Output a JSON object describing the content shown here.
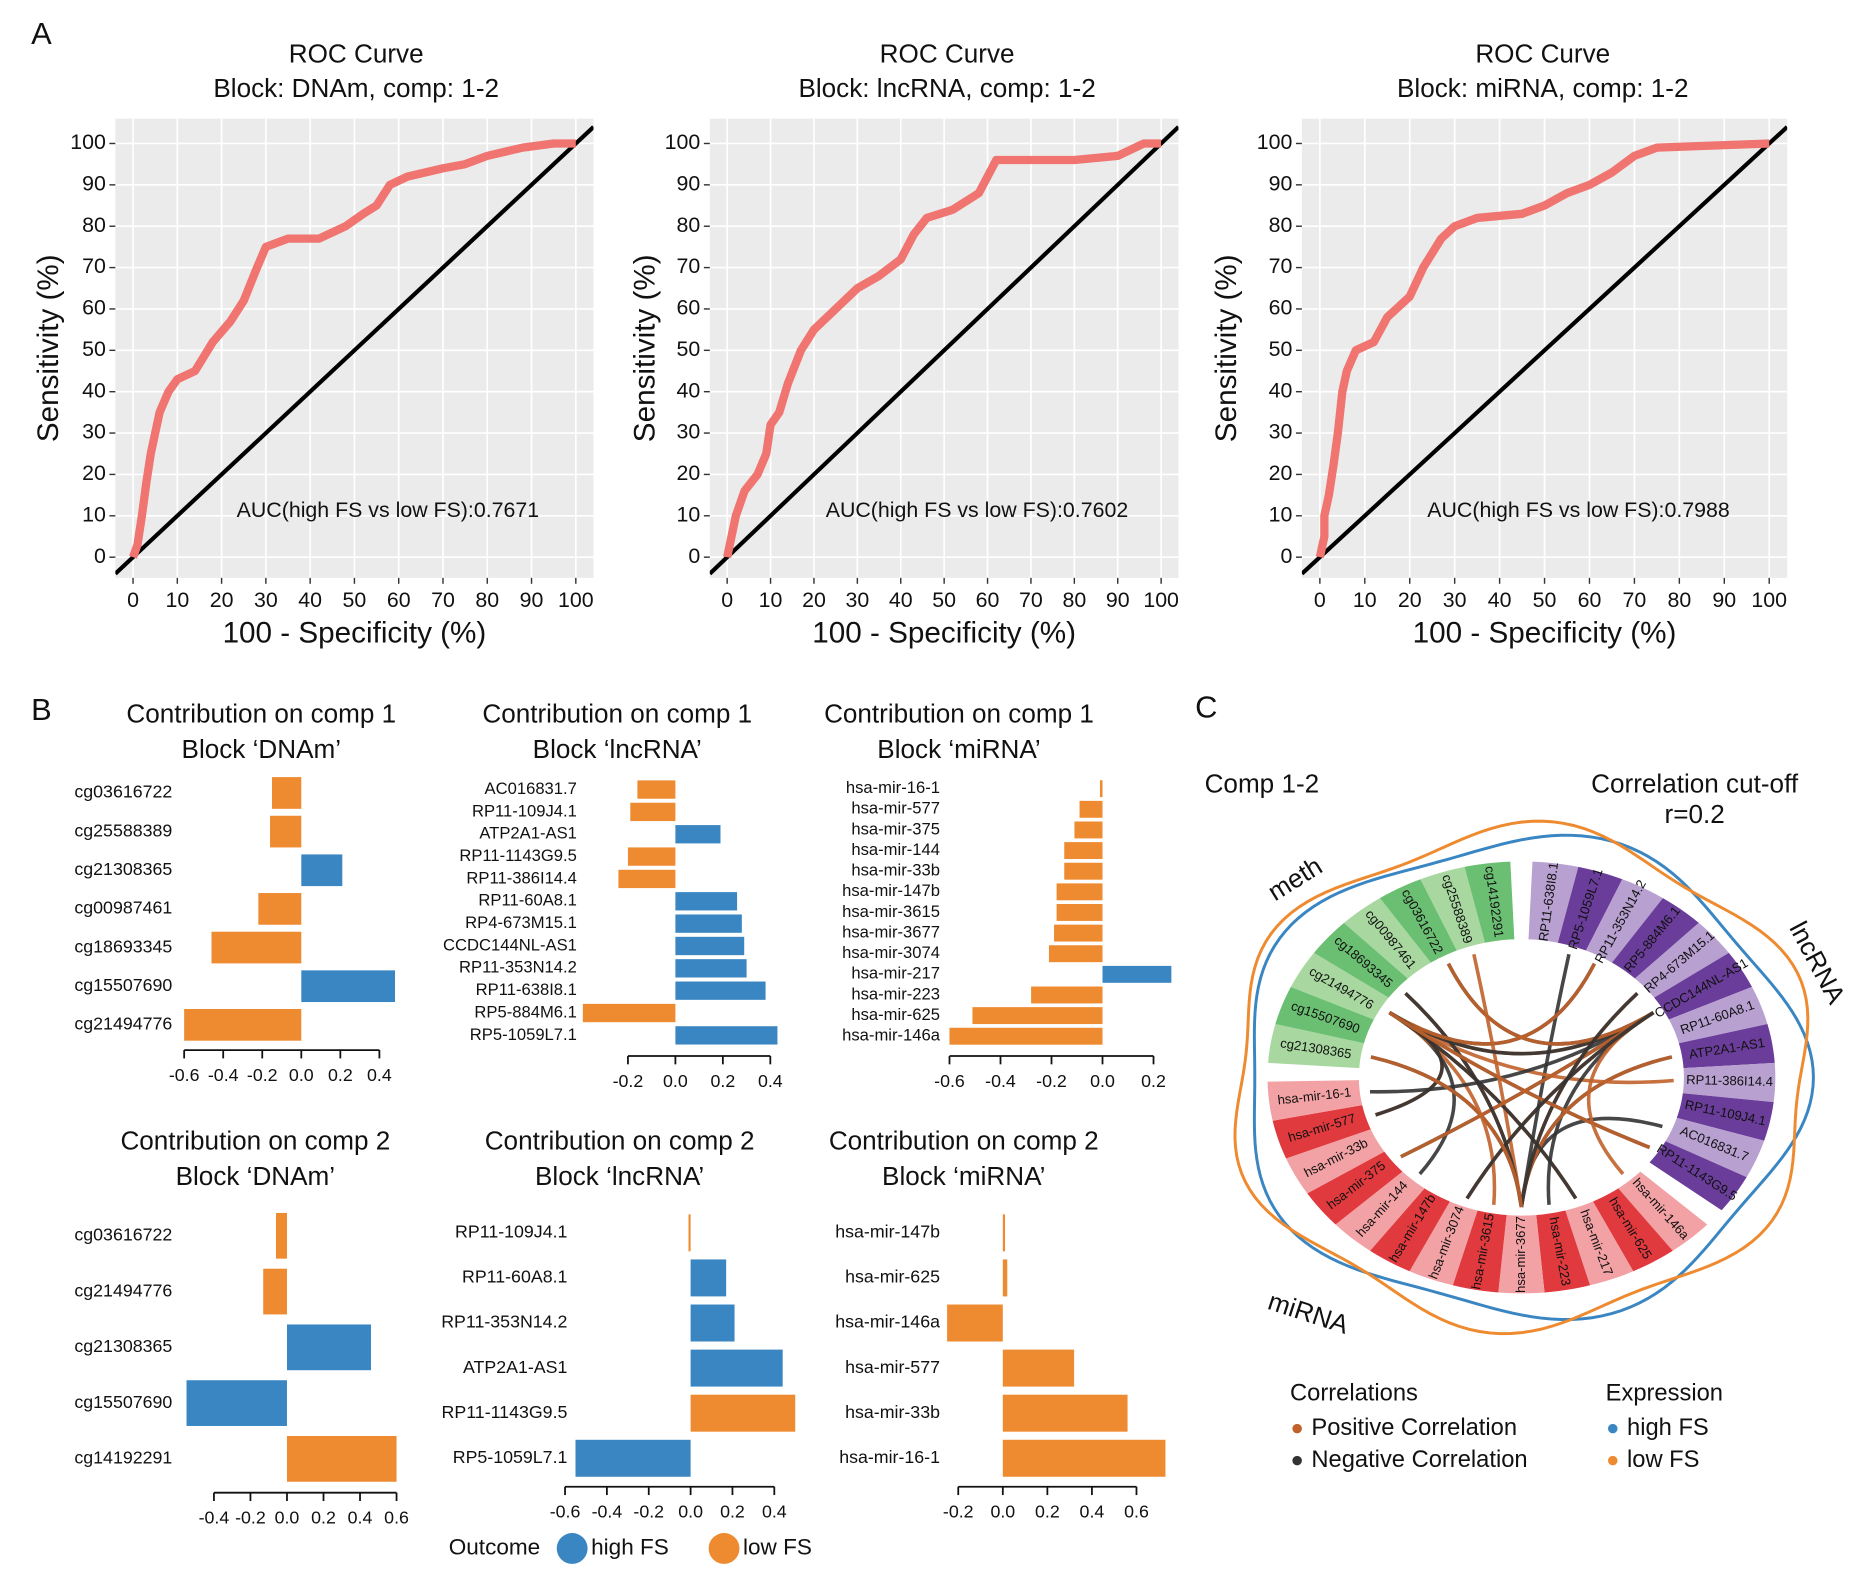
{
  "panel_labels": [
    "A",
    "B",
    "C"
  ],
  "legend": {
    "title": "Outcome",
    "items": [
      {
        "name": "high FS",
        "color": "#3a86c2"
      },
      {
        "name": "low FS",
        "color": "#ee8a2f"
      }
    ]
  },
  "chart_data": [
    {
      "type": "line",
      "title": "ROC Curve",
      "subtitle": "Block: DNAm, comp: 1-2",
      "xlabel": "100 - Specificity (%)",
      "ylabel": "Sensitivity (%)",
      "annotation": "AUC(high FS vs low FS):0.7671",
      "color": "#f07470",
      "x": [
        0,
        1,
        2,
        3,
        4,
        5,
        6,
        8,
        10,
        14,
        18,
        22,
        25,
        28,
        30,
        35,
        42,
        48,
        52,
        55,
        58,
        62,
        70,
        75,
        80,
        88,
        95,
        100
      ],
      "values": [
        0,
        3,
        10,
        18,
        25,
        30,
        35,
        40,
        43,
        45,
        52,
        57,
        62,
        70,
        75,
        77,
        77,
        80,
        83,
        85,
        90,
        92,
        94,
        95,
        97,
        99,
        100,
        100
      ],
      "xlim": [
        -4,
        104
      ],
      "ylim": [
        -5,
        106
      ],
      "xticks": [
        0,
        10,
        20,
        30,
        40,
        50,
        60,
        70,
        80,
        90,
        100
      ],
      "yticks": [
        0,
        10,
        20,
        30,
        40,
        50,
        60,
        70,
        80,
        90,
        100
      ],
      "grid": true
    },
    {
      "type": "line",
      "title": "ROC Curve",
      "subtitle": "Block: lncRNA, comp: 1-2",
      "xlabel": "100 - Specificity (%)",
      "ylabel": "Sensitivity (%)",
      "annotation": "AUC(high FS vs low FS):0.7602",
      "color": "#f07470",
      "x": [
        0,
        1,
        2,
        4,
        7,
        9,
        10,
        12,
        14,
        17,
        20,
        25,
        30,
        35,
        40,
        43,
        46,
        52,
        58,
        60,
        62,
        80,
        90,
        96,
        100
      ],
      "values": [
        0,
        5,
        10,
        16,
        20,
        25,
        32,
        35,
        42,
        50,
        55,
        60,
        65,
        68,
        72,
        78,
        82,
        84,
        88,
        92,
        96,
        96,
        97,
        100,
        100
      ],
      "xlim": [
        -4,
        104
      ],
      "ylim": [
        -5,
        106
      ],
      "xticks": [
        0,
        10,
        20,
        30,
        40,
        50,
        60,
        70,
        80,
        90,
        100
      ],
      "yticks": [
        0,
        10,
        20,
        30,
        40,
        50,
        60,
        70,
        80,
        90,
        100
      ],
      "grid": true
    },
    {
      "type": "line",
      "title": "ROC Curve",
      "subtitle": "Block: miRNA, comp: 1-2",
      "xlabel": "100 - Specificity (%)",
      "ylabel": "Sensitivity (%)",
      "annotation": "AUC(high FS vs low FS):0.7988",
      "color": "#f07470",
      "x": [
        0,
        1,
        1,
        2,
        3,
        4,
        5,
        6,
        8,
        12,
        15,
        20,
        23,
        27,
        30,
        35,
        45,
        50,
        55,
        60,
        65,
        70,
        75,
        100
      ],
      "values": [
        0,
        5,
        10,
        15,
        22,
        30,
        40,
        45,
        50,
        52,
        58,
        63,
        70,
        77,
        80,
        82,
        83,
        85,
        88,
        90,
        93,
        97,
        99,
        100
      ],
      "xlim": [
        -4,
        104
      ],
      "ylim": [
        -5,
        106
      ],
      "xticks": [
        0,
        10,
        20,
        30,
        40,
        50,
        60,
        70,
        80,
        90,
        100
      ],
      "yticks": [
        0,
        10,
        20,
        30,
        40,
        50,
        60,
        70,
        80,
        90,
        100
      ],
      "grid": true
    },
    {
      "type": "bar",
      "orientation": "horizontal",
      "title": "Contribution on comp 1",
      "subtitle": "Block ‘DNAm’",
      "categories": [
        "cg03616722",
        "cg25588389",
        "cg21308365",
        "cg00987461",
        "cg18693345",
        "cg15507690",
        "cg21494776"
      ],
      "values": [
        -0.15,
        -0.16,
        0.21,
        -0.22,
        -0.46,
        0.48,
        -0.6
      ],
      "colors": [
        "#ee8a2f",
        "#ee8a2f",
        "#3a86c2",
        "#ee8a2f",
        "#ee8a2f",
        "#3a86c2",
        "#ee8a2f"
      ],
      "xlim": [
        -0.6,
        0.5
      ],
      "xticks": [
        -0.6,
        -0.4,
        -0.2,
        {
          "value": 0,
          "label": "0.0"
        },
        0.2,
        0.4
      ]
    },
    {
      "type": "bar",
      "orientation": "horizontal",
      "title": "Contribution on comp 1",
      "subtitle": "Block ‘lncRNA’",
      "categories": [
        "AC016831.7",
        "RP11-109J4.1",
        "ATP2A1-AS1",
        "RP11-1143G9.5",
        "RP11-386I14.4",
        "RP11-60A8.1",
        "RP4-673M15.1",
        "CCDC144NL-AS1",
        "RP11-353N14.2",
        "RP11-638I8.1",
        "RP5-884M6.1",
        "RP5-1059L7.1"
      ],
      "values": [
        -0.16,
        -0.19,
        0.19,
        -0.2,
        -0.24,
        0.26,
        0.28,
        0.29,
        0.3,
        0.38,
        -0.39,
        0.43
      ],
      "colors": [
        "#ee8a2f",
        "#ee8a2f",
        "#3a86c2",
        "#ee8a2f",
        "#ee8a2f",
        "#3a86c2",
        "#3a86c2",
        "#3a86c2",
        "#3a86c2",
        "#3a86c2",
        "#ee8a2f",
        "#3a86c2"
      ],
      "xlim": [
        -0.4,
        0.45
      ],
      "xticks": [
        -0.2,
        {
          "value": 0,
          "label": "0.0"
        },
        0.2,
        0.4
      ]
    },
    {
      "type": "bar",
      "orientation": "horizontal",
      "title": "Contribution on comp 1",
      "subtitle": "Block ‘miRNA’",
      "categories": [
        "hsa-mir-16-1",
        "hsa-mir-577",
        "hsa-mir-375",
        "hsa-mir-144",
        "hsa-mir-33b",
        "hsa-mir-147b",
        "hsa-mir-3615",
        "hsa-mir-3677",
        "hsa-mir-3074",
        "hsa-mir-217",
        "hsa-mir-223",
        "hsa-mir-625",
        "hsa-mir-146a"
      ],
      "values": [
        -0.01,
        -0.09,
        -0.11,
        -0.15,
        -0.15,
        -0.18,
        -0.18,
        -0.19,
        -0.21,
        0.27,
        -0.28,
        -0.51,
        -0.6
      ],
      "colors": [
        "#ee8a2f",
        "#ee8a2f",
        "#ee8a2f",
        "#ee8a2f",
        "#ee8a2f",
        "#ee8a2f",
        "#ee8a2f",
        "#ee8a2f",
        "#ee8a2f",
        "#3a86c2",
        "#ee8a2f",
        "#ee8a2f",
        "#ee8a2f"
      ],
      "xlim": [
        -0.6,
        0.27
      ],
      "xticks": [
        -0.6,
        -0.4,
        -0.2,
        {
          "value": 0,
          "label": "0.0"
        },
        0.2
      ]
    },
    {
      "type": "bar",
      "orientation": "horizontal",
      "title": "Contribution on comp 2",
      "subtitle": "Block ‘DNAm’",
      "categories": [
        "cg03616722",
        "cg21494776",
        "cg21308365",
        "cg15507690",
        "cg14192291"
      ],
      "values": [
        -0.06,
        -0.13,
        0.46,
        -0.55,
        0.6
      ],
      "colors": [
        "#ee8a2f",
        "#ee8a2f",
        "#3a86c2",
        "#3a86c2",
        "#ee8a2f"
      ],
      "xlim": [
        -0.55,
        0.6
      ],
      "xticks": [
        -0.4,
        -0.2,
        {
          "value": 0,
          "label": "0.0"
        },
        0.2,
        0.4,
        0.6
      ]
    },
    {
      "type": "bar",
      "orientation": "horizontal",
      "title": "Contribution on comp 2",
      "subtitle": "Block ‘lncRNA’",
      "categories": [
        "RP11-109J4.1",
        "RP11-60A8.1",
        "RP11-353N14.2",
        "ATP2A1-AS1",
        "RP11-1143G9.5",
        "RP5-1059L7.1"
      ],
      "values": [
        -0.01,
        0.17,
        0.21,
        0.44,
        0.5,
        -0.55
      ],
      "colors": [
        "#ee8a2f",
        "#3a86c2",
        "#3a86c2",
        "#3a86c2",
        "#ee8a2f",
        "#3a86c2"
      ],
      "xlim": [
        -0.6,
        0.5
      ],
      "xticks": [
        -0.6,
        -0.4,
        -0.2,
        {
          "value": 0,
          "label": "0.0"
        },
        0.2,
        0.4
      ]
    },
    {
      "type": "bar",
      "orientation": "horizontal",
      "title": "Contribution on comp 2",
      "subtitle": "Block ‘miRNA’",
      "categories": [
        "hsa-mir-147b",
        "hsa-mir-625",
        "hsa-mir-146a",
        "hsa-mir-577",
        "hsa-mir-33b",
        "hsa-mir-16-1"
      ],
      "values": [
        0.01,
        0.02,
        -0.25,
        0.32,
        0.56,
        0.73
      ],
      "colors": [
        "#ee8a2f",
        "#ee8a2f",
        "#ee8a2f",
        "#ee8a2f",
        "#ee8a2f",
        "#ee8a2f"
      ],
      "xlim": [
        -0.25,
        0.73
      ],
      "xticks": [
        -0.2,
        {
          "value": 0,
          "label": "0.0"
        },
        0.2,
        0.4,
        0.6
      ]
    },
    {
      "type": "chord",
      "title": "Comp 1-2",
      "subtitle": [
        "Correlation cut-off",
        "r=0.2"
      ],
      "groups": [
        {
          "name": "lncRNA",
          "colors": [
            "#b8a0d0",
            "#6a3d9a"
          ],
          "labels": [
            "RP11-638I8.1",
            "RP5-1059L7.1",
            "RP11-353N14.2",
            "RP5-884M6.1",
            "RP4-673M15.1",
            "CCDC144NL-AS1",
            "RP11-60A8.1",
            "ATP2A1-AS1",
            "RP11-386I14.4",
            "RP11-109J4.1",
            "AC016831.7",
            "RP11-1143G9.5"
          ]
        },
        {
          "name": "miRNA",
          "colors": [
            "#f2a2a4",
            "#e03a3e"
          ],
          "labels": [
            "hsa-mir-146a",
            "hsa-mir-625",
            "hsa-mir-217",
            "hsa-mir-223",
            "hsa-mir-3677",
            "hsa-mir-3615",
            "hsa-mir-3074",
            "hsa-mir-147b",
            "hsa-mir-144",
            "hsa-mir-375",
            "hsa-mir-33b",
            "hsa-mir-577",
            "hsa-mir-16-1"
          ]
        },
        {
          "name": "meth",
          "colors": [
            "#a8d8a0",
            "#6bbf72"
          ],
          "labels": [
            "cg21308365",
            "cg15507690",
            "cg21494776",
            "cg18693345",
            "cg00987461",
            "cg03616722",
            "cg25588389",
            "cg14192291"
          ]
        }
      ],
      "legends": [
        {
          "title": "Correlations",
          "items": [
            {
              "name": "Positive Correlation",
              "color": "#c0622a"
            },
            {
              "name": "Negative Correlation",
              "color": "#333333"
            }
          ]
        },
        {
          "title": "Expression",
          "items": [
            {
              "name": "high FS",
              "color": "#3a86c2"
            },
            {
              "name": "low FS",
              "color": "#ee8a2f"
            }
          ]
        }
      ]
    }
  ]
}
